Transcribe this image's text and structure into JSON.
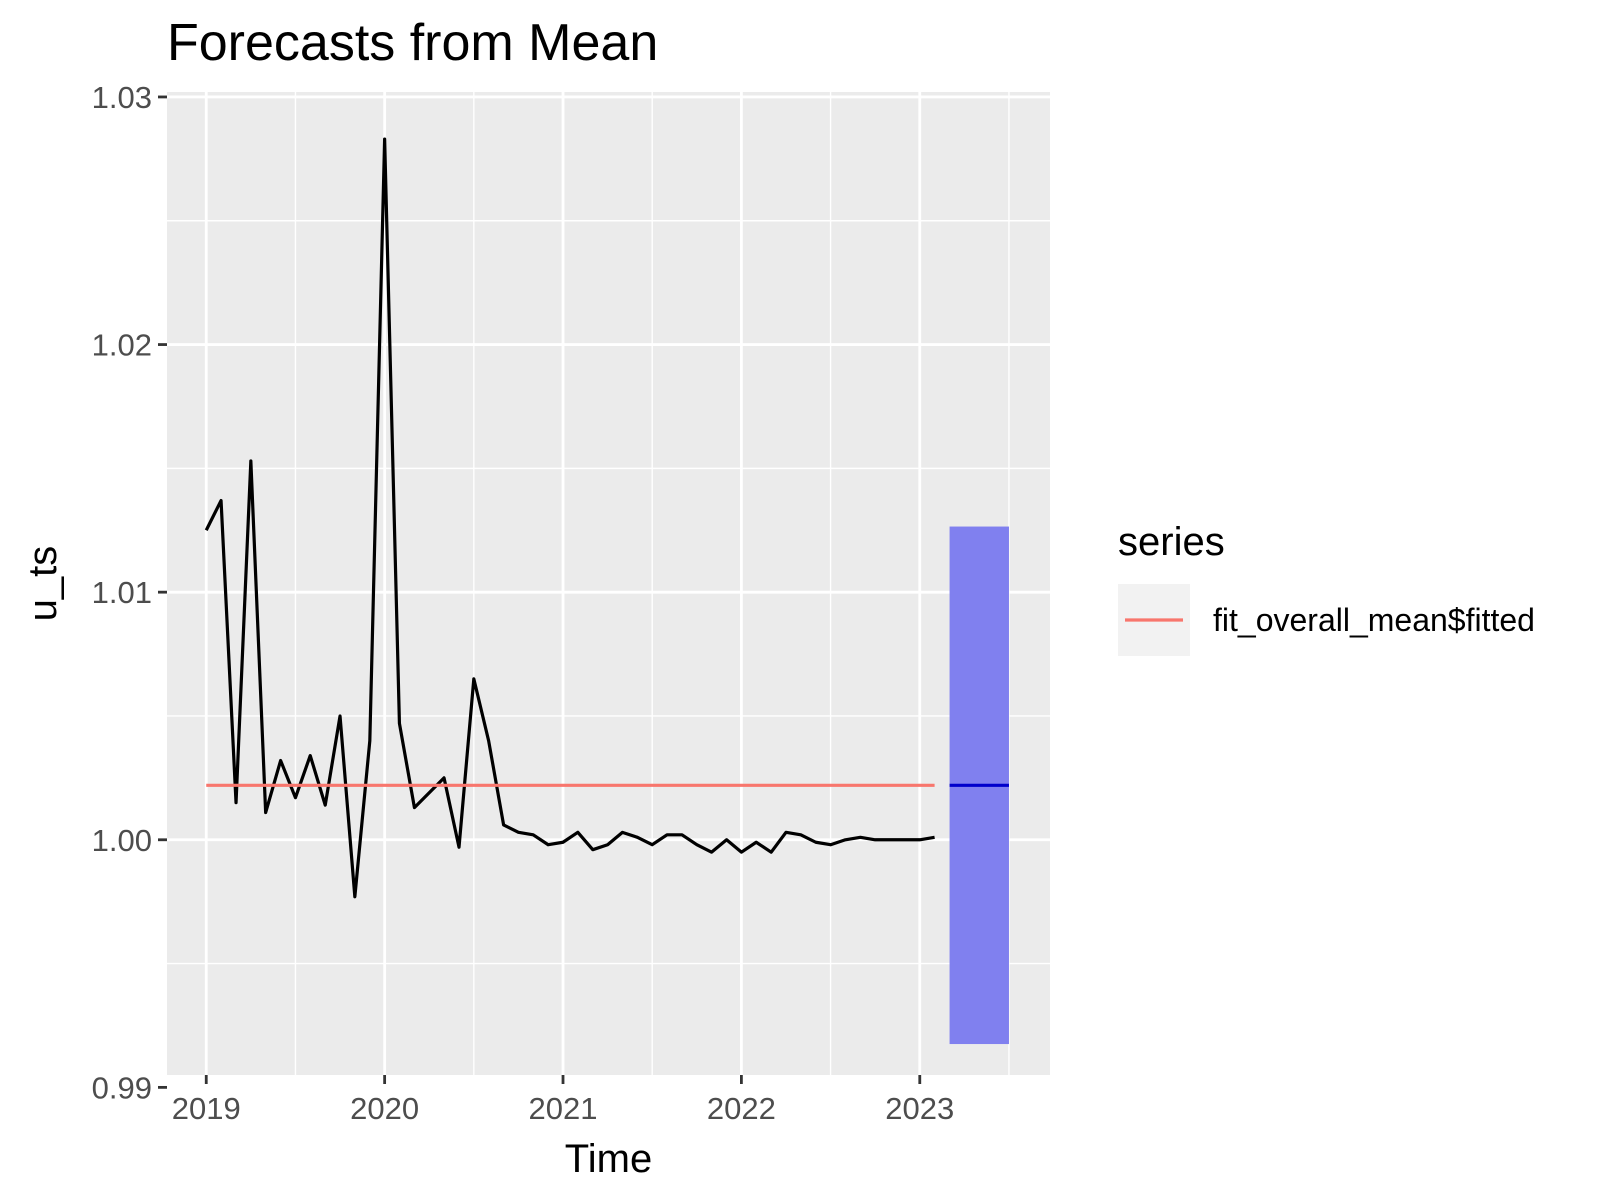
{
  "chart_data": {
    "type": "line",
    "title": "Forecasts from Mean",
    "xlabel": "Time",
    "ylabel": "u_ts",
    "xlim": [
      2018.78,
      2023.73
    ],
    "ylim": [
      0.9905,
      1.0302
    ],
    "x_ticks": [
      2019,
      2020,
      2021,
      2022,
      2023
    ],
    "x_tick_labels": [
      "2019",
      "2020",
      "2021",
      "2022",
      "2023"
    ],
    "x_minor_ticks": [
      2019.5,
      2020.5,
      2021.5,
      2022.5,
      2023.5
    ],
    "y_ticks": [
      0.99,
      1.0,
      1.01,
      1.02,
      1.03
    ],
    "y_tick_labels": [
      "0.99",
      "1.00",
      "1.01",
      "1.02",
      "1.03"
    ],
    "y_minor_ticks": [
      0.995,
      1.005,
      1.015,
      1.025
    ],
    "grid": true,
    "legend": {
      "title": "series",
      "position": "right"
    },
    "series": [
      {
        "name": "",
        "color": "#000000",
        "x": [
          2019.0,
          2019.083,
          2019.167,
          2019.25,
          2019.333,
          2019.417,
          2019.5,
          2019.583,
          2019.667,
          2019.75,
          2019.833,
          2019.917,
          2020.0,
          2020.083,
          2020.167,
          2020.25,
          2020.333,
          2020.417,
          2020.5,
          2020.583,
          2020.667,
          2020.75,
          2020.833,
          2020.917,
          2021.0,
          2021.083,
          2021.167,
          2021.25,
          2021.333,
          2021.417,
          2021.5,
          2021.583,
          2021.667,
          2021.75,
          2021.833,
          2021.917,
          2022.0,
          2022.083,
          2022.167,
          2022.25,
          2022.333,
          2022.417,
          2022.5,
          2022.583,
          2022.667,
          2022.75,
          2022.833,
          2022.917,
          2023.0,
          2023.083
        ],
        "y": [
          1.0125,
          1.0137,
          1.0015,
          1.0153,
          1.0011,
          1.0032,
          1.0017,
          1.0034,
          1.0014,
          1.005,
          0.9977,
          1.004,
          1.0283,
          1.0047,
          1.0013,
          1.0019,
          1.0025,
          0.9997,
          1.0065,
          1.004,
          1.0006,
          1.0003,
          1.0002,
          0.9998,
          0.9999,
          1.0003,
          0.9996,
          0.9998,
          1.0003,
          1.0001,
          0.9998,
          1.0002,
          1.0002,
          0.9998,
          0.9995,
          1.0,
          0.9995,
          0.9999,
          0.9995,
          1.0003,
          1.0002,
          0.9999,
          0.9998,
          1.0,
          1.0001,
          1.0,
          1.0,
          1.0,
          1.0,
          1.0001
        ]
      },
      {
        "name": "fit_overall_mean$fitted",
        "color": "#F8766D",
        "x": [
          2019.0,
          2023.083
        ],
        "y": [
          1.0022,
          1.0022
        ]
      }
    ],
    "forecast": {
      "x_start": 2023.167,
      "x_end": 2023.5,
      "mean": 1.0022,
      "lower": 0.99175,
      "upper": 1.01265,
      "band_color": "#8080EF",
      "mean_color": "#0000CC"
    }
  }
}
